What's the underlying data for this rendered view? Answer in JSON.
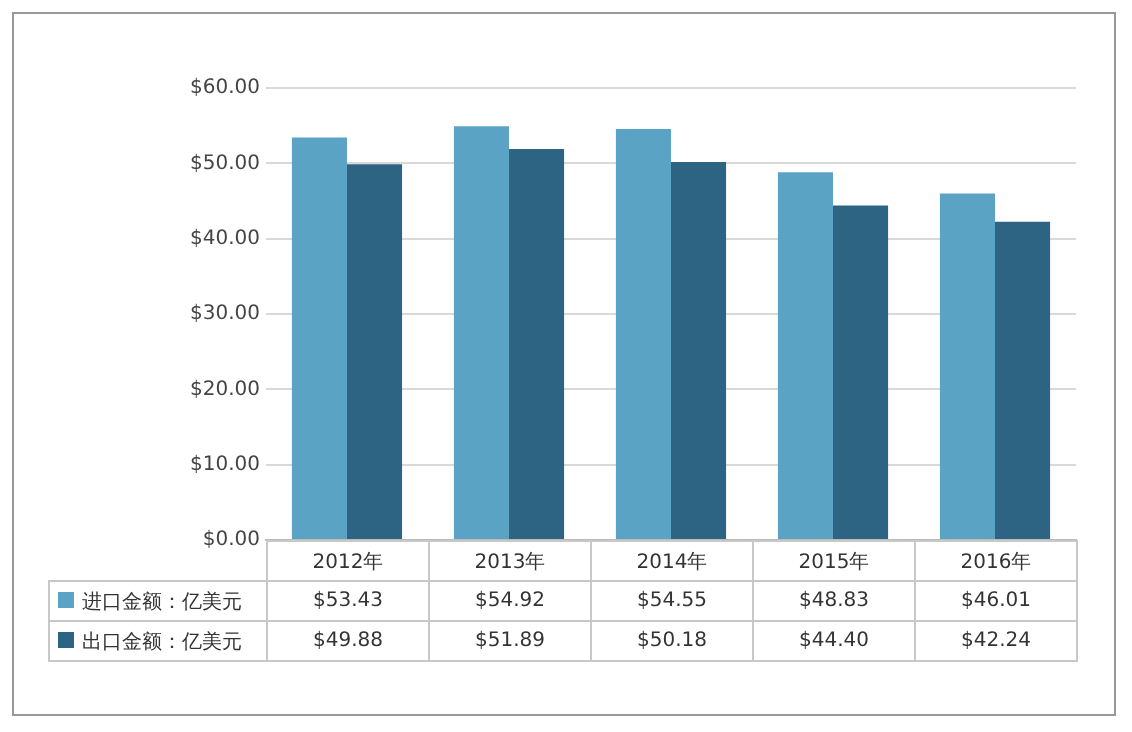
{
  "chart_data": {
    "type": "bar",
    "categories": [
      "2012年",
      "2013年",
      "2014年",
      "2015年",
      "2016年"
    ],
    "series": [
      {
        "name": "进口金额：亿美元",
        "color": "#5ba3c5",
        "values": [
          53.43,
          54.92,
          54.55,
          48.83,
          46.01
        ],
        "value_labels": [
          "$53.43",
          "$54.92",
          "$54.55",
          "$48.83",
          "$46.01"
        ]
      },
      {
        "name": "出口金额：亿美元",
        "color": "#2d6383",
        "values": [
          49.88,
          51.89,
          50.18,
          44.4,
          42.24
        ],
        "value_labels": [
          "$49.88",
          "$51.89",
          "$50.18",
          "$44.40",
          "$42.24"
        ]
      }
    ],
    "ylim": [
      0,
      60
    ],
    "yticks": [
      {
        "value": 0,
        "label": "$0.00"
      },
      {
        "value": 10,
        "label": "$10.00"
      },
      {
        "value": 20,
        "label": "$20.00"
      },
      {
        "value": 30,
        "label": "$30.00"
      },
      {
        "value": 40,
        "label": "$40.00"
      },
      {
        "value": 50,
        "label": "$50.00"
      },
      {
        "value": 60,
        "label": "$60.00"
      }
    ],
    "grid": "y",
    "legend": "bottom"
  }
}
